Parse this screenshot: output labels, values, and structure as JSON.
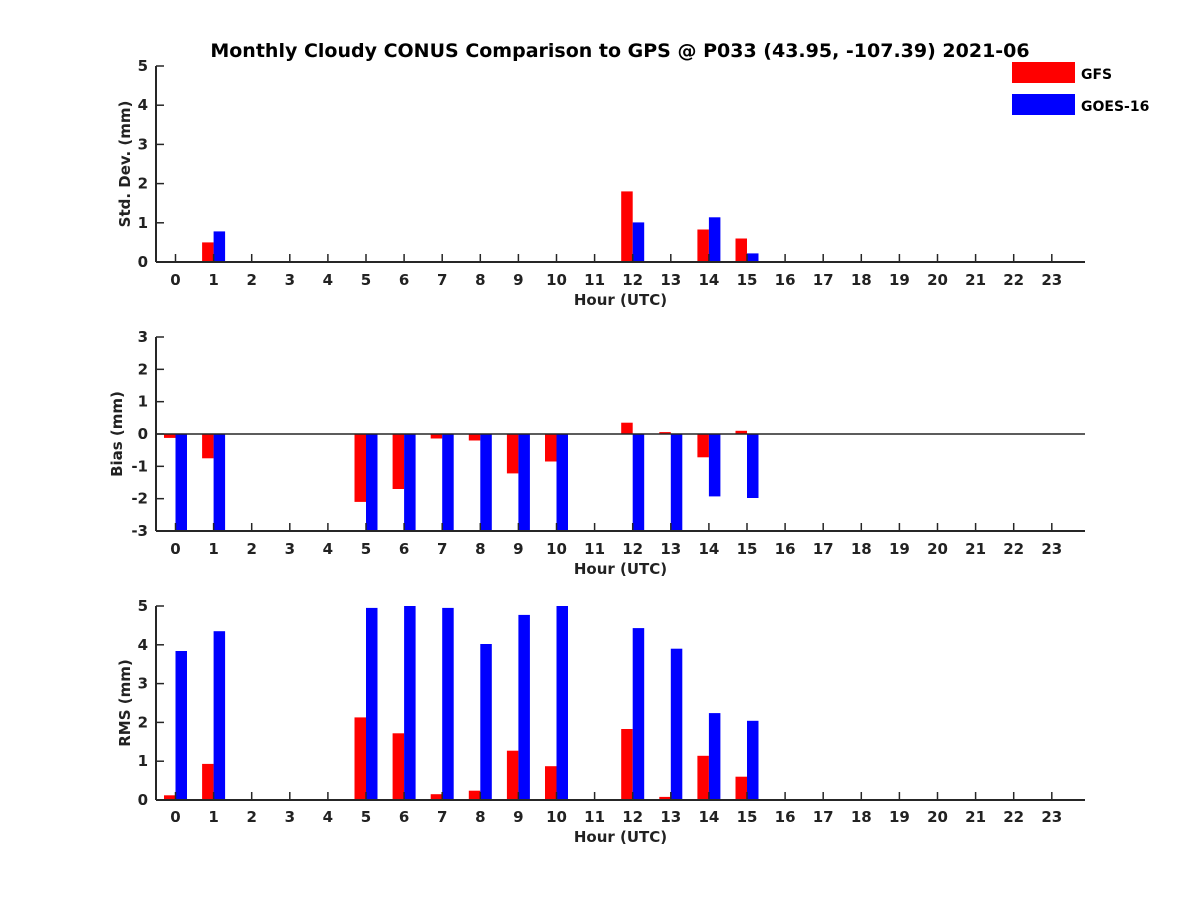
{
  "title": "Monthly Cloudy CONUS Comparison to GPS @ P033 (43.95, -107.39) 2021-06",
  "legend": [
    {
      "label": "GFS",
      "color": "#ff0000"
    },
    {
      "label": "GOES-16",
      "color": "#0000ff"
    }
  ],
  "chart_data": [
    {
      "type": "bar",
      "title": "Monthly Cloudy CONUS Comparison to GPS @ P033 (43.95, -107.39) 2021-06",
      "xlabel": "Hour (UTC)",
      "ylabel": "Std. Dev. (mm)",
      "ylim": [
        0,
        5
      ],
      "yticks": [
        "0",
        "1",
        "2",
        "3",
        "4",
        "5"
      ],
      "categories": [
        "0",
        "1",
        "2",
        "3",
        "4",
        "5",
        "6",
        "7",
        "8",
        "9",
        "10",
        "11",
        "12",
        "13",
        "14",
        "15",
        "16",
        "17",
        "18",
        "19",
        "20",
        "21",
        "22",
        "23"
      ],
      "series": [
        {
          "name": "GFS",
          "color": "#ff0000",
          "values": [
            0,
            0.5,
            0,
            0,
            0,
            0,
            0,
            0,
            0,
            0,
            0,
            0,
            1.8,
            0,
            0.83,
            0.6,
            0,
            0,
            0,
            0,
            0,
            0,
            0,
            0
          ]
        },
        {
          "name": "GOES-16",
          "color": "#0000ff",
          "values": [
            0,
            0.78,
            0,
            0,
            0,
            0,
            0,
            0,
            0,
            0,
            0,
            0,
            1.01,
            0,
            1.14,
            0.22,
            0,
            0,
            0,
            0,
            0,
            0,
            0,
            0
          ]
        }
      ],
      "grid": false,
      "legend_position": "top-right"
    },
    {
      "type": "bar",
      "xlabel": "Hour (UTC)",
      "ylabel": "Bias (mm)",
      "ylim": [
        -3,
        3
      ],
      "yticks": [
        "-3",
        "-2",
        "-1",
        "0",
        "1",
        "2",
        "3"
      ],
      "categories": [
        "0",
        "1",
        "2",
        "3",
        "4",
        "5",
        "6",
        "7",
        "8",
        "9",
        "10",
        "11",
        "12",
        "13",
        "14",
        "15",
        "16",
        "17",
        "18",
        "19",
        "20",
        "21",
        "22",
        "23"
      ],
      "series": [
        {
          "name": "GFS",
          "color": "#ff0000",
          "values": [
            -0.12,
            -0.75,
            0,
            0,
            0,
            -2.1,
            -1.7,
            -0.14,
            -0.2,
            -1.22,
            -0.85,
            0,
            0.35,
            0.06,
            -0.72,
            0.1,
            0,
            0,
            0,
            0,
            0,
            0,
            0,
            0
          ]
        },
        {
          "name": "GOES-16",
          "color": "#0000ff",
          "values": [
            -3.0,
            -3.0,
            0,
            0,
            0,
            -3.0,
            -3.0,
            -3.0,
            -3.0,
            -3.0,
            -3.0,
            0,
            -3.0,
            -3.0,
            -1.93,
            -1.98,
            0,
            0,
            0,
            0,
            0,
            0,
            0,
            0
          ]
        }
      ],
      "grid": false
    },
    {
      "type": "bar",
      "xlabel": "Hour (UTC)",
      "ylabel": "RMS (mm)",
      "ylim": [
        0,
        5
      ],
      "yticks": [
        "0",
        "1",
        "2",
        "3",
        "4",
        "5"
      ],
      "categories": [
        "0",
        "1",
        "2",
        "3",
        "4",
        "5",
        "6",
        "7",
        "8",
        "9",
        "10",
        "11",
        "12",
        "13",
        "14",
        "15",
        "16",
        "17",
        "18",
        "19",
        "20",
        "21",
        "22",
        "23"
      ],
      "series": [
        {
          "name": "GFS",
          "color": "#ff0000",
          "values": [
            0.12,
            0.93,
            0,
            0,
            0,
            2.13,
            1.72,
            0.15,
            0.24,
            1.27,
            0.87,
            0,
            1.83,
            0.08,
            1.14,
            0.6,
            0,
            0,
            0,
            0,
            0,
            0,
            0,
            0
          ]
        },
        {
          "name": "GOES-16",
          "color": "#0000ff",
          "values": [
            3.84,
            4.35,
            0,
            0,
            0,
            4.95,
            5.0,
            4.95,
            4.02,
            4.77,
            5.0,
            0,
            4.43,
            3.9,
            2.24,
            2.04,
            0,
            0,
            0,
            0,
            0,
            0,
            0,
            0
          ]
        }
      ],
      "grid": false
    }
  ]
}
